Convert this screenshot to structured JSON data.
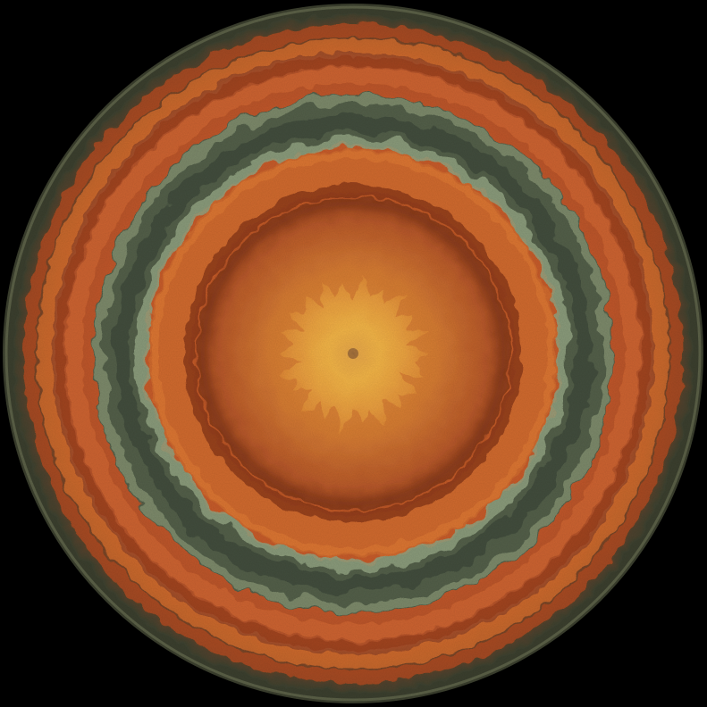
{
  "image": {
    "subject": "concentric-ring-disc",
    "background_color": "#000000",
    "palette": {
      "rim_dark": "#3a3d2c",
      "rim_olive": "#5d6248",
      "outer_orange": "#c2582a",
      "deep_rust": "#8e3a1c",
      "mid_orange": "#d46a30",
      "sage_band": "#4e5a45",
      "sage_light": "#8a9a7a",
      "inner_orange": "#cf6a2c",
      "core_gold": "#f0b040",
      "core_center": "#9a6a3a"
    }
  }
}
